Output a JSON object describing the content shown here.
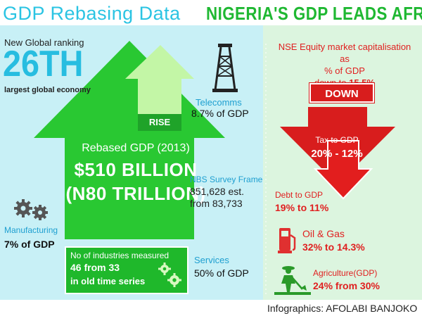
{
  "title": {
    "left": "GDP Rebasing Data",
    "right": "NIGERIA'S GDP LEADS AFRICA"
  },
  "ranking": {
    "label": "New Global ranking",
    "rank": "26TH",
    "sublabel": "largest global economy"
  },
  "telecoms": {
    "label": "Telecomms",
    "value": "8.7% of GDP"
  },
  "rise_label": "RISE",
  "rebased": {
    "label": "Rebased GDP (2013)",
    "usd": "$510 BILLION",
    "naira": "(N80 TRILLION)"
  },
  "nbs": {
    "label": "NBS Survey Frame",
    "line1": "851,628 est.",
    "line2": "from 83,733"
  },
  "manufacturing": {
    "label": "Manufacturing",
    "value": "7% of GDP"
  },
  "industries": {
    "line1": "No of industries measured",
    "line2": "46 from 33",
    "line3": "in old time series"
  },
  "services": {
    "label": "Services",
    "value": "50% of GDP"
  },
  "nse": {
    "line1": "NSE Equity market capitalisation as",
    "line2": "% of GDP",
    "line3_prefix": "down to ",
    "line3_value": "15.5%"
  },
  "down_label": "DOWN",
  "tax": {
    "label": "Tax to GDP",
    "value": "20% - 12%"
  },
  "debt": {
    "label": "Debt to GDP",
    "value": "19% to 11%"
  },
  "oil_gas": {
    "label": "Oil & Gas",
    "value": "32% to 14.3%"
  },
  "agriculture": {
    "label": "Agriculture(GDP)",
    "value": "24% from 30%"
  },
  "credit": {
    "prefix": "Infographics: ",
    "name": "AFOLABI BANJOKO"
  },
  "colors": {
    "green": "#29c832",
    "dark_green": "#1fa329",
    "red": "#d81d1d",
    "blue": "#27bde0",
    "bg_left": "#c8f0f6",
    "bg_right": "#dcf5df"
  },
  "icons": [
    "oil-rig-icon",
    "gears-icon",
    "fuel-pump-icon",
    "farmer-icon",
    "down-arrow-icon"
  ]
}
